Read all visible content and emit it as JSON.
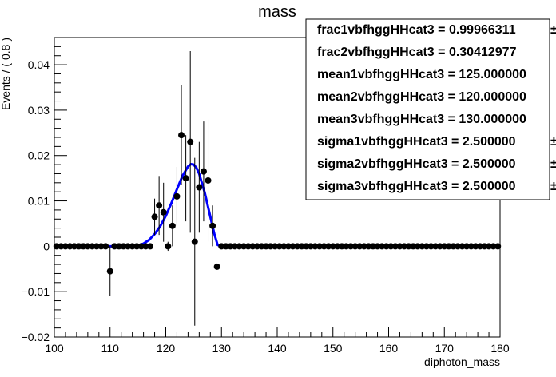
{
  "chart_data": {
    "type": "scatter",
    "title": "mass",
    "xlabel": "diphoton_mass",
    "ylabel": "Events / ( 0.8 )",
    "xlim": [
      100,
      180
    ],
    "ylim": [
      -0.02,
      0.046
    ],
    "x_ticks": [
      100,
      110,
      120,
      130,
      140,
      150,
      160,
      170,
      180
    ],
    "x_tick_labels": [
      "100",
      "110",
      "120",
      "130",
      "140",
      "150",
      "160",
      "170",
      "180"
    ],
    "y_ticks": [
      -0.02,
      -0.01,
      0,
      0.01,
      0.02,
      0.03,
      0.04
    ],
    "y_tick_labels": [
      "−0.02",
      "−0.01",
      "0",
      "0.01",
      "0.02",
      "0.03",
      "0.04"
    ],
    "grid": false,
    "series": [
      {
        "kind": "points-with-errors",
        "color": "#000000",
        "points": [
          {
            "x": 110.0,
            "y": -0.0055,
            "err": 0.0055
          },
          {
            "x": 118.0,
            "y": 0.0065,
            "err": 0.004
          },
          {
            "x": 118.8,
            "y": 0.009,
            "err": 0.0065
          },
          {
            "x": 119.6,
            "y": 0.0075,
            "err": 0.0065
          },
          {
            "x": 120.4,
            "y": 0.0,
            "err": 0.001
          },
          {
            "x": 121.2,
            "y": 0.0045,
            "err": 0.0045
          },
          {
            "x": 122.0,
            "y": 0.011,
            "err": 0.0065
          },
          {
            "x": 122.8,
            "y": 0.0245,
            "err": 0.011
          },
          {
            "x": 123.6,
            "y": 0.015,
            "err": 0.0095
          },
          {
            "x": 124.4,
            "y": 0.023,
            "err": 0.02
          },
          {
            "x": 125.2,
            "y": 0.001,
            "err": 0.0185
          },
          {
            "x": 126.0,
            "y": 0.013,
            "err": 0.01
          },
          {
            "x": 126.8,
            "y": 0.0165,
            "err": 0.011
          },
          {
            "x": 127.6,
            "y": 0.0145,
            "err": 0.0135
          },
          {
            "x": 128.4,
            "y": 0.0045,
            "err": 0.0045
          },
          {
            "x": 129.2,
            "y": -0.0045,
            "err": 0.0
          }
        ],
        "zero_range": [
          100.4,
          179.6
        ],
        "zero_step": 0.8
      },
      {
        "kind": "line",
        "color": "#0000ff",
        "x": [
          100,
          110,
          112,
          114,
          115,
          116,
          117,
          118,
          119,
          120,
          121,
          122,
          123,
          124,
          124.5,
          125,
          125.5,
          126,
          127,
          128,
          128.7,
          129.3,
          130,
          140,
          150,
          160,
          170,
          180
        ],
        "y": [
          0,
          0,
          0,
          0,
          0.0002,
          0.0006,
          0.0014,
          0.0027,
          0.0044,
          0.0067,
          0.0095,
          0.0126,
          0.0155,
          0.0176,
          0.0181,
          0.018,
          0.0173,
          0.016,
          0.0118,
          0.0065,
          0.0028,
          0.0003,
          0,
          0,
          0,
          0,
          0,
          0
        ]
      }
    ],
    "legend": "none"
  },
  "params": [
    "frac1vbfhggHHcat3 =  0.99966311",
    "frac2vbfhggHHcat3 =  0.30412977",
    "mean1vbfhggHHcat3 =  125.000000",
    "mean2vbfhggHHcat3 =  120.000000",
    "mean3vbfhggHHcat3 =  130.000000",
    "sigma1vbfhggHHcat3 =  2.500000",
    "sigma2vbfhggHHcat3 =  2.500000",
    "sigma3vbfhggHHcat3 =  2.500000"
  ],
  "params_overflow_marks": [
    "±",
    "",
    "",
    "",
    "",
    "±",
    "±",
    "±"
  ]
}
